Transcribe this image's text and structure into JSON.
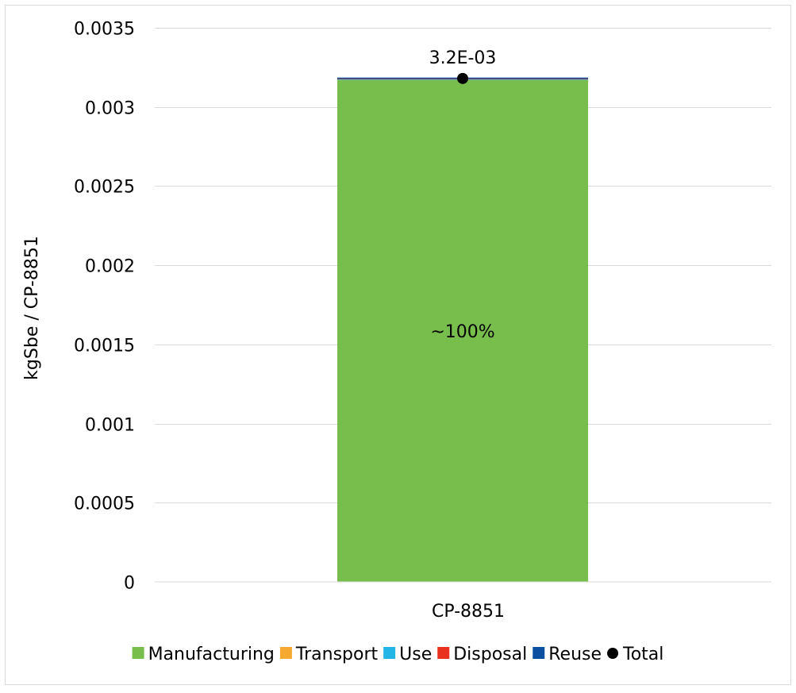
{
  "chart_data": {
    "type": "bar",
    "stacked": true,
    "categories": [
      "CP-8851"
    ],
    "ylabel": "kgSbe / CP-8851",
    "xlabel": "",
    "ylim": [
      0,
      0.0035
    ],
    "y_ticks": [
      0,
      0.0005,
      0.001,
      0.0015,
      0.002,
      0.0025,
      0.003,
      0.0035
    ],
    "y_tick_labels": [
      "0",
      "0.0005",
      "0.001",
      "0.0015",
      "0.002",
      "0.0025",
      "0.003",
      "0.0035"
    ],
    "grid": true,
    "legend_position": "bottom",
    "series": [
      {
        "name": "Manufacturing",
        "color": "#77BE4D",
        "values": [
          0.00317
        ]
      },
      {
        "name": "Transport",
        "color": "#F5A931",
        "values": [
          5e-07
        ]
      },
      {
        "name": "Use",
        "color": "#22B5E6",
        "values": [
          4e-06
        ]
      },
      {
        "name": "Disposal",
        "color": "#E8321F",
        "values": [
          3e-06
        ]
      },
      {
        "name": "Reuse",
        "color": "#0A4FA0",
        "values": [
          6e-06
        ]
      }
    ],
    "total": {
      "name": "Total",
      "color": "#000000",
      "values": [
        0.00318
      ],
      "label": "3.2E-03"
    },
    "annotations": [
      {
        "text": "~100%",
        "series": "Manufacturing",
        "category": "CP-8851"
      }
    ]
  }
}
